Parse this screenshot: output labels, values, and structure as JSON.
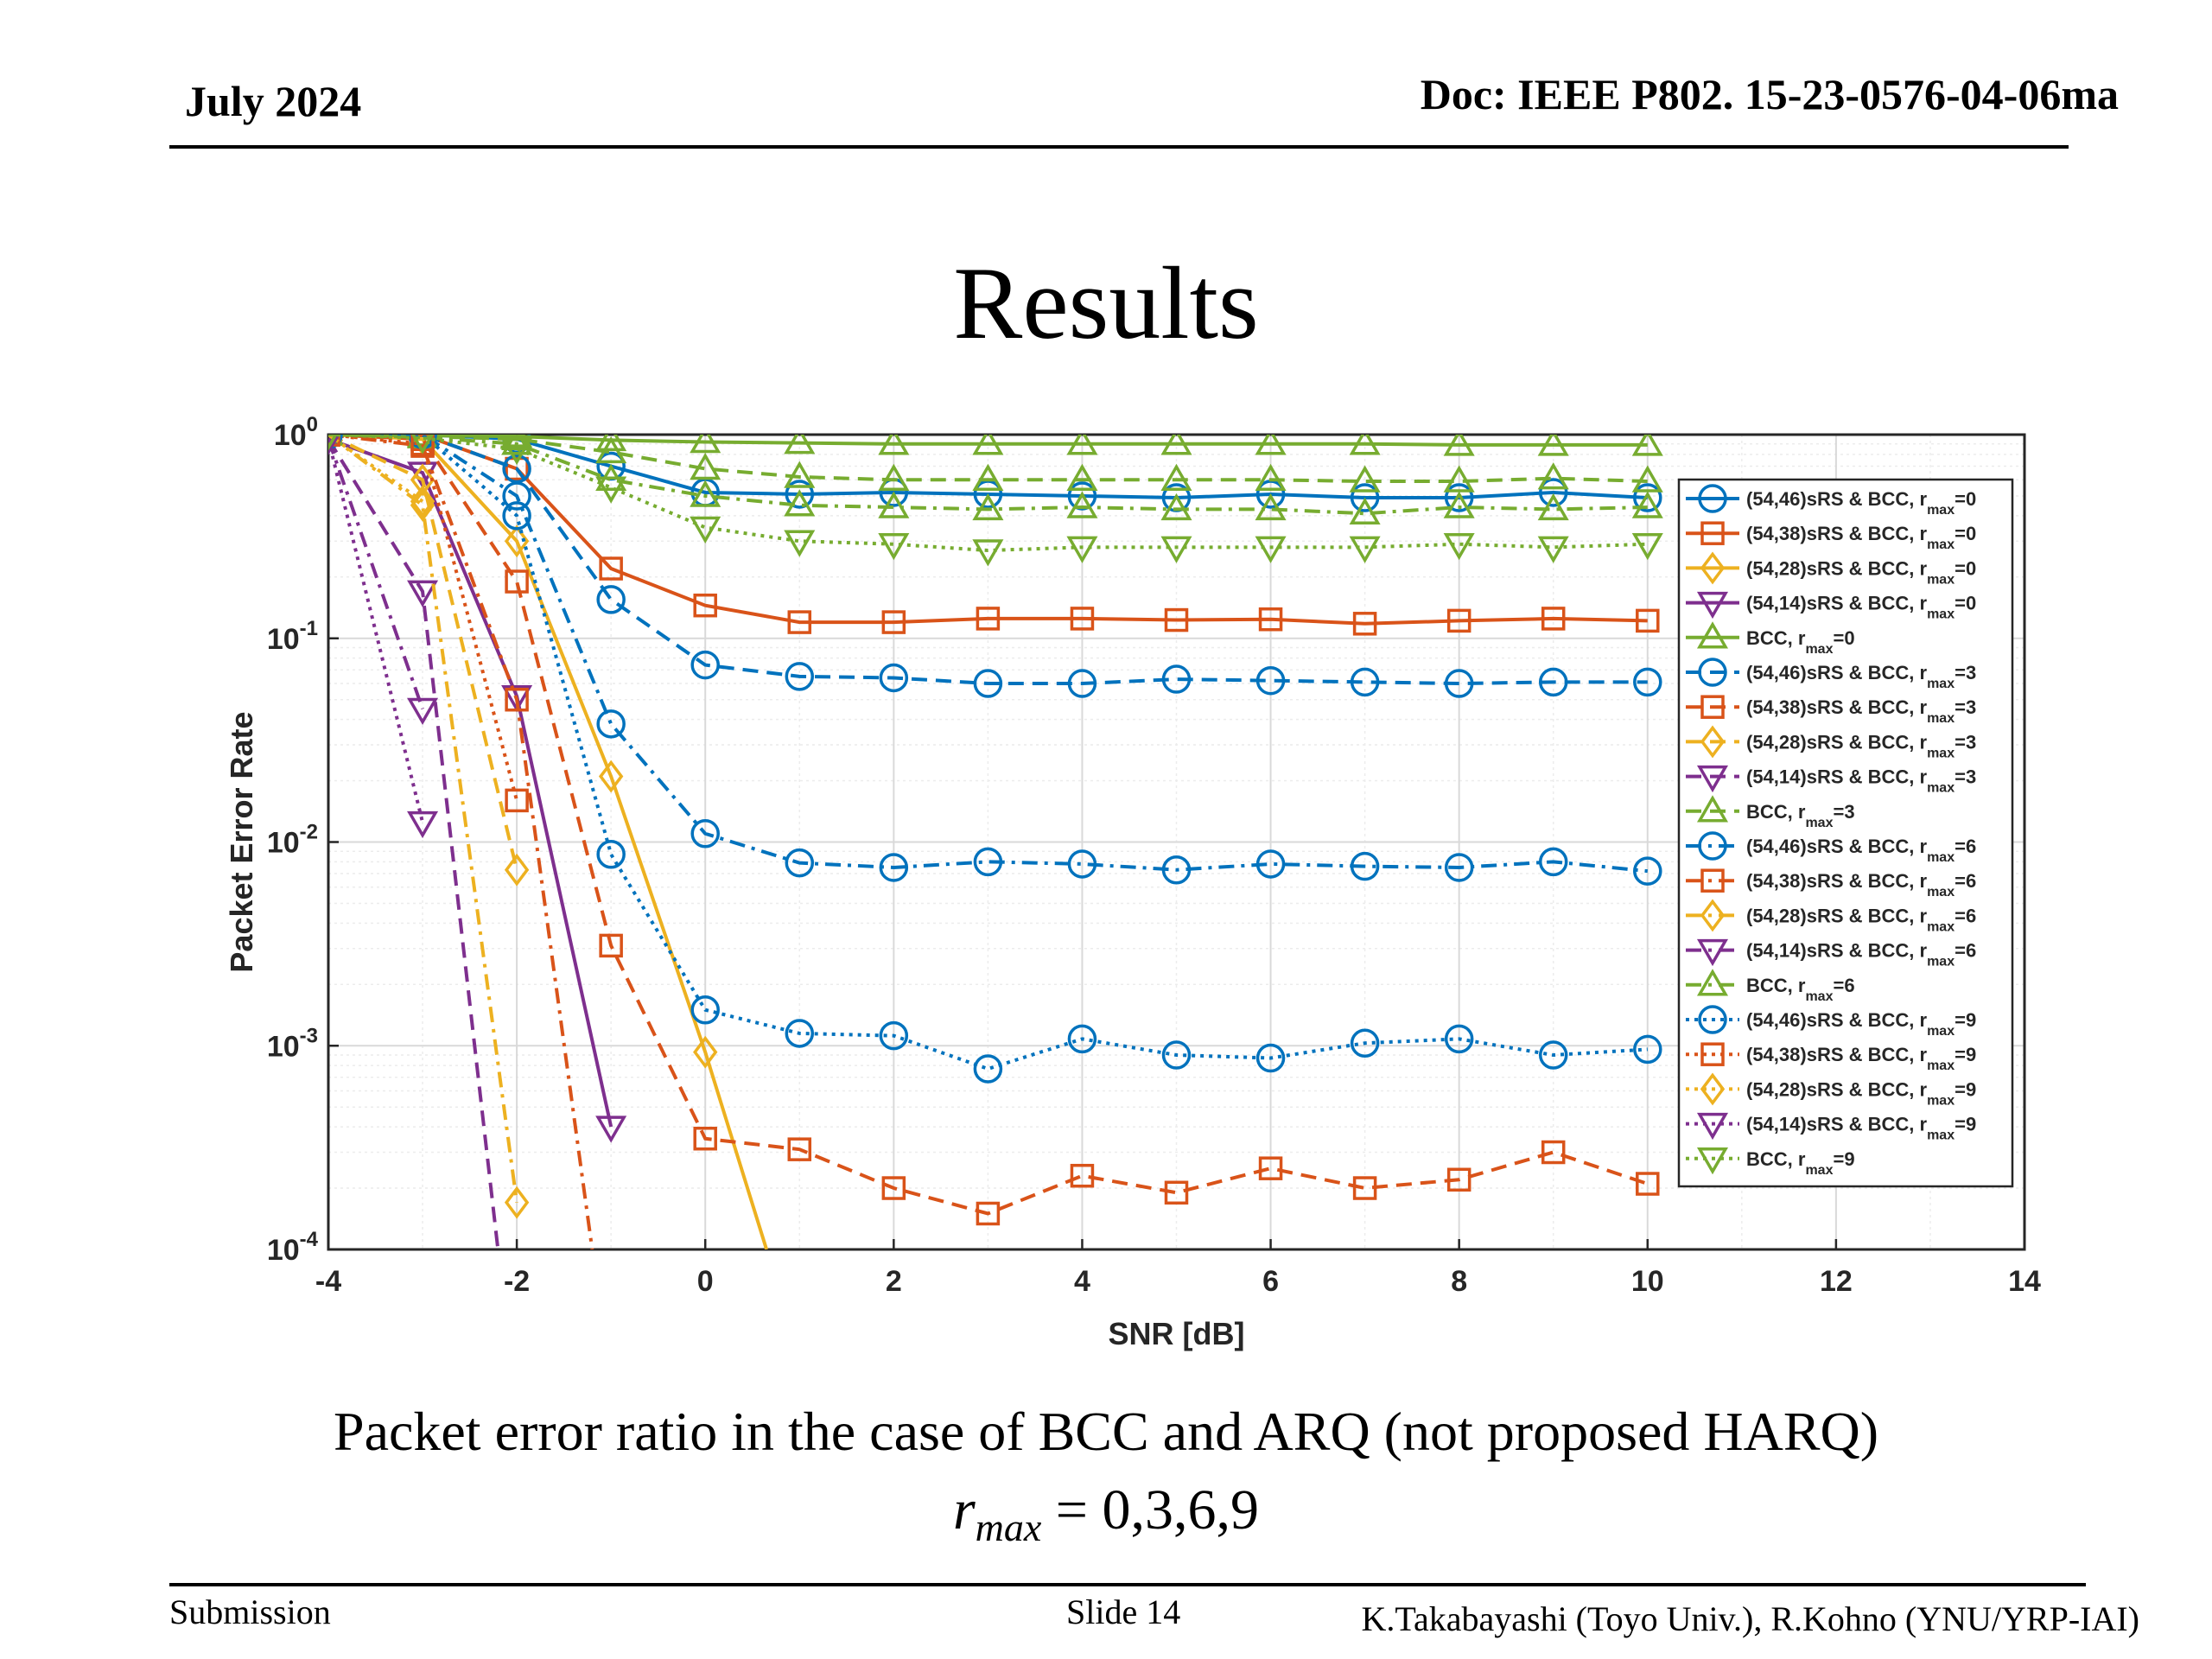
{
  "header": {
    "date": "July 2024",
    "doc": "Doc: IEEE P802. 15-23-0576-04-06ma"
  },
  "title": "Results",
  "caption": "Packet error ratio in the case of BCC and ARQ (not proposed HARQ)",
  "formula": {
    "var": "r",
    "sub": "max",
    "rhs": " = 0,3,6,9"
  },
  "footer": {
    "left": "Submission",
    "slide": "Slide 14",
    "authors": "K.Takabayashi (Toyo Univ.), R.Kohno (YNU/YRP-IAI)"
  },
  "colors": {
    "blue": "#0072BD",
    "red": "#D95319",
    "yellow": "#EDB120",
    "purple": "#7E2F8E",
    "green": "#77AC30"
  },
  "chart_data": {
    "type": "line",
    "xlabel": "SNR [dB]",
    "ylabel": "Packet Error Rate",
    "xlim": [
      -4,
      14
    ],
    "ylim": [
      0.0001,
      1
    ],
    "yscale": "log",
    "xticks": [
      "-4",
      "-2",
      "0",
      "2",
      "4",
      "6",
      "8",
      "10",
      "12",
      "14"
    ],
    "yticks": [
      {
        "base": "10",
        "exp": "0"
      },
      {
        "base": "10",
        "exp": "-1"
      },
      {
        "base": "10",
        "exp": "-2"
      },
      {
        "base": "10",
        "exp": "-3"
      },
      {
        "base": "10",
        "exp": "-4"
      }
    ],
    "grid": true,
    "legend_position": "right",
    "series": [
      {
        "name": "(54,46)sRS & BCC, r",
        "sub": "max",
        "suffix": "=0",
        "color": "#0072BD",
        "dash": "solid",
        "marker": "circle",
        "x": [
          -4,
          -3,
          -2,
          -1,
          0,
          1,
          2,
          3,
          4,
          5,
          6,
          7,
          8,
          9,
          10
        ],
        "y": [
          1,
          1,
          0.95,
          0.7,
          0.52,
          0.51,
          0.52,
          0.51,
          0.5,
          0.49,
          0.51,
          0.49,
          0.49,
          0.52,
          0.49
        ]
      },
      {
        "name": "(54,38)sRS & BCC, r",
        "sub": "max",
        "suffix": "=0",
        "color": "#D95319",
        "dash": "solid",
        "marker": "square",
        "x": [
          -4,
          -3,
          -2,
          -1,
          0,
          1,
          2,
          3,
          4,
          5,
          6,
          7,
          8,
          9,
          10
        ],
        "y": [
          1,
          1,
          0.68,
          0.22,
          0.145,
          0.12,
          0.12,
          0.125,
          0.125,
          0.123,
          0.124,
          0.118,
          0.122,
          0.125,
          0.122
        ]
      },
      {
        "name": "(54,28)sRS & BCC, r",
        "sub": "max",
        "suffix": "=0",
        "color": "#EDB120",
        "dash": "solid",
        "marker": "diamond",
        "x": [
          -4,
          -3,
          -2,
          -1,
          0,
          0.65
        ],
        "y": [
          1,
          0.95,
          0.3,
          0.021,
          0.00093,
          0.0001
        ]
      },
      {
        "name": "(54,14)sRS & BCC, r",
        "sub": "max",
        "suffix": "=0",
        "color": "#7E2F8E",
        "dash": "solid",
        "marker": "triangle-down",
        "x": [
          -4,
          -3,
          -2,
          -1
        ],
        "y": [
          0.95,
          0.65,
          0.052,
          0.0004
        ]
      },
      {
        "name": "BCC, r",
        "sub": "max",
        "suffix": "=0",
        "color": "#77AC30",
        "dash": "solid",
        "marker": "triangle-up",
        "x": [
          -4,
          -3,
          -2,
          -1,
          0,
          1,
          2,
          3,
          4,
          5,
          6,
          7,
          8,
          9,
          10
        ],
        "y": [
          1,
          0.99,
          0.98,
          0.94,
          0.92,
          0.91,
          0.9,
          0.9,
          0.9,
          0.9,
          0.9,
          0.9,
          0.89,
          0.89,
          0.89
        ]
      },
      {
        "name": "(54,46)sRS & BCC, r",
        "sub": "max",
        "suffix": "=3",
        "color": "#0072BD",
        "dash": "dashed",
        "marker": "circle",
        "x": [
          -4,
          -3,
          -2,
          -1,
          0,
          1,
          2,
          3,
          4,
          5,
          6,
          7,
          8,
          9,
          10
        ],
        "y": [
          1,
          1,
          0.68,
          0.155,
          0.074,
          0.065,
          0.064,
          0.06,
          0.06,
          0.063,
          0.062,
          0.061,
          0.06,
          0.061,
          0.061
        ]
      },
      {
        "name": "(54,38)sRS & BCC, r",
        "sub": "max",
        "suffix": "=3",
        "color": "#D95319",
        "dash": "dashed",
        "marker": "square",
        "x": [
          -4,
          -3,
          -2,
          -1,
          0,
          1,
          2,
          3,
          4,
          5,
          6,
          7,
          8,
          9,
          10
        ],
        "y": [
          1,
          0.95,
          0.19,
          0.0031,
          0.00035,
          0.00031,
          0.0002,
          0.00015,
          0.00023,
          0.00019,
          0.00025,
          0.0002,
          0.00022,
          0.0003,
          0.00021
        ]
      },
      {
        "name": "(54,28)sRS & BCC, r",
        "sub": "max",
        "suffix": "=3",
        "color": "#EDB120",
        "dash": "dashed",
        "marker": "diamond",
        "x": [
          -4,
          -3,
          -2
        ],
        "y": [
          1,
          0.6,
          0.0073
        ]
      },
      {
        "name": "(54,14)sRS & BCC, r",
        "sub": "max",
        "suffix": "=3",
        "color": "#7E2F8E",
        "dash": "dashed",
        "marker": "triangle-down",
        "x": [
          -4,
          -3,
          -2.2
        ],
        "y": [
          0.95,
          0.17,
          0.0001
        ]
      },
      {
        "name": "BCC, r",
        "sub": "max",
        "suffix": "=3",
        "color": "#77AC30",
        "dash": "dashed",
        "marker": "triangle-up",
        "x": [
          -4,
          -3,
          -2,
          -1,
          0,
          1,
          2,
          3,
          4,
          5,
          6,
          7,
          8,
          9,
          10
        ],
        "y": [
          1,
          0.98,
          0.95,
          0.82,
          0.68,
          0.62,
          0.6,
          0.6,
          0.6,
          0.6,
          0.6,
          0.59,
          0.59,
          0.61,
          0.59
        ]
      },
      {
        "name": "(54,46)sRS & BCC, r",
        "sub": "max",
        "suffix": "=6",
        "color": "#0072BD",
        "dash": "dashdot",
        "marker": "circle",
        "x": [
          -4,
          -3,
          -2,
          -1,
          0,
          1,
          2,
          3,
          4,
          5,
          6,
          7,
          8,
          9,
          10
        ],
        "y": [
          1,
          1,
          0.5,
          0.038,
          0.011,
          0.0079,
          0.0075,
          0.008,
          0.0078,
          0.0073,
          0.0078,
          0.0076,
          0.0075,
          0.008,
          0.0072
        ]
      },
      {
        "name": "(54,38)sRS & BCC, r",
        "sub": "max",
        "suffix": "=6",
        "color": "#D95319",
        "dash": "dashdot",
        "marker": "square",
        "x": [
          -4,
          -3,
          -2,
          -1.2
        ],
        "y": [
          1,
          0.88,
          0.05,
          0.0001
        ]
      },
      {
        "name": "(54,28)sRS & BCC, r",
        "sub": "max",
        "suffix": "=6",
        "color": "#EDB120",
        "dash": "dashdot",
        "marker": "diamond",
        "x": [
          -4,
          -3,
          -2
        ],
        "y": [
          1,
          0.45,
          0.00017
        ]
      },
      {
        "name": "(54,14)sRS & BCC, r",
        "sub": "max",
        "suffix": "=6",
        "color": "#7E2F8E",
        "dash": "dashdot",
        "marker": "triangle-down",
        "x": [
          -4,
          -3
        ],
        "y": [
          0.95,
          0.045
        ]
      },
      {
        "name": "BCC, r",
        "sub": "max",
        "suffix": "=6",
        "color": "#77AC30",
        "dash": "dashdot",
        "marker": "triangle-up",
        "x": [
          -4,
          -3,
          -2,
          -1,
          0,
          1,
          2,
          3,
          4,
          5,
          6,
          7,
          8,
          9,
          10
        ],
        "y": [
          1,
          0.97,
          0.9,
          0.6,
          0.5,
          0.45,
          0.44,
          0.43,
          0.44,
          0.43,
          0.43,
          0.41,
          0.44,
          0.43,
          0.44
        ]
      },
      {
        "name": "(54,46)sRS & BCC, r",
        "sub": "max",
        "suffix": "=9",
        "color": "#0072BD",
        "dash": "dotted",
        "marker": "circle",
        "x": [
          -4,
          -3,
          -2,
          -1,
          0,
          1,
          2,
          3,
          4,
          5,
          6,
          7,
          8,
          9,
          10
        ],
        "y": [
          1,
          1,
          0.4,
          0.0087,
          0.0015,
          0.00115,
          0.00112,
          0.00077,
          0.00108,
          0.0009,
          0.00087,
          0.00103,
          0.00108,
          0.0009,
          0.00096
        ]
      },
      {
        "name": "(54,38)sRS & BCC, r",
        "sub": "max",
        "suffix": "=9",
        "color": "#D95319",
        "dash": "dotted",
        "marker": "square",
        "x": [
          -4,
          -3,
          -2
        ],
        "y": [
          1,
          0.9,
          0.016
        ]
      },
      {
        "name": "(54,28)sRS & BCC, r",
        "sub": "max",
        "suffix": "=9",
        "color": "#EDB120",
        "dash": "dotted",
        "marker": "diamond",
        "x": [
          -4,
          -3
        ],
        "y": [
          1,
          0.47
        ]
      },
      {
        "name": "(54,14)sRS & BCC, r",
        "sub": "max",
        "suffix": "=9",
        "color": "#7E2F8E",
        "dash": "dotted",
        "marker": "triangle-down",
        "x": [
          -4,
          -3
        ],
        "y": [
          0.95,
          0.0125
        ]
      },
      {
        "name": "BCC, r",
        "sub": "max",
        "suffix": "=9",
        "color": "#77AC30",
        "dash": "dotted",
        "marker": "triangle-down",
        "x": [
          -4,
          -3,
          -2,
          -1,
          0,
          1,
          2,
          3,
          4,
          5,
          6,
          7,
          8,
          9,
          10
        ],
        "y": [
          1,
          0.96,
          0.85,
          0.55,
          0.35,
          0.3,
          0.29,
          0.27,
          0.28,
          0.28,
          0.28,
          0.28,
          0.29,
          0.28,
          0.29
        ]
      }
    ]
  }
}
